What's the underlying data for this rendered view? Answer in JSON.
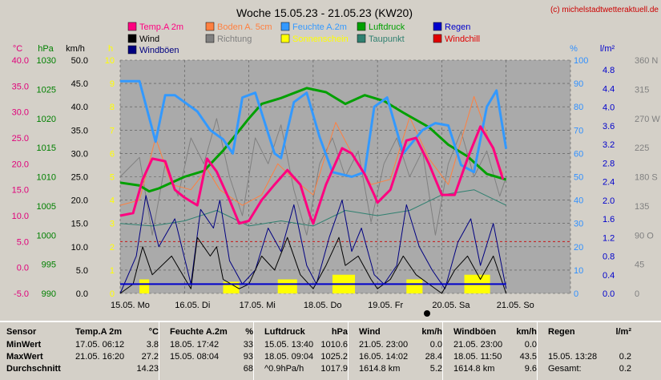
{
  "chart_data": {
    "type": "line",
    "title": "Woche 15.05.23 - 21.05.23 (KW20)",
    "watermark": "(c) michelstadtwetteraktuell.de",
    "x_ticks": [
      "15.05. Mo",
      "16.05. Di",
      "17.05. Mi",
      "18.05. Do",
      "19.05. Fr",
      "20.05. Sa",
      "21.05. So"
    ],
    "axes": {
      "temp": {
        "unit": "°C",
        "min": -5,
        "max": 40,
        "ticks": [
          "40.0",
          "35.0",
          "30.0",
          "25.0",
          "20.0",
          "15.0",
          "10.0",
          "5.0",
          "0.0",
          "-5.0"
        ],
        "color": "#e0007a"
      },
      "pressure": {
        "unit": "hPa",
        "min": 990,
        "max": 1030,
        "ticks": [
          "1030",
          "1025",
          "1020",
          "1015",
          "1010",
          "1005",
          "1000",
          "995",
          "990"
        ],
        "color": "#008000"
      },
      "wind": {
        "unit": "km/h",
        "min": 0,
        "max": 50,
        "ticks": [
          "50.0",
          "45.0",
          "40.0",
          "35.0",
          "30.0",
          "25.0",
          "20.0",
          "15.0",
          "10.0",
          "5.0",
          "0.0"
        ],
        "color": "#000000"
      },
      "sun": {
        "unit": "h",
        "min": 0,
        "max": 10,
        "ticks": [
          "10",
          "9",
          "8",
          "7",
          "6",
          "5",
          "4",
          "3",
          "2",
          "1",
          "0"
        ],
        "color": "#ffff00"
      },
      "humidity": {
        "unit": "%",
        "min": 0,
        "max": 100,
        "ticks": [
          "100",
          "90",
          "80",
          "70",
          "60",
          "50",
          "40",
          "30",
          "20",
          "10",
          "0"
        ],
        "color": "#3090ff"
      },
      "rain": {
        "unit": "l/m²",
        "min": 0,
        "max": 5.0,
        "ticks": [
          "4.8",
          "4.4",
          "4.0",
          "3.6",
          "3.2",
          "2.8",
          "2.4",
          "2.0",
          "1.6",
          "1.2",
          "0.8",
          "0.4",
          "0.0"
        ],
        "color": "#0000cc"
      },
      "direction": {
        "unit": "",
        "min": 0,
        "max": 360,
        "ticks": [
          "360 N",
          "315",
          "270 W",
          "225",
          "180 S",
          "135",
          "90 O",
          "45",
          "0"
        ],
        "color": "#808080"
      }
    },
    "legend": [
      {
        "name": "Temp.A 2m",
        "color": "#ff0080"
      },
      {
        "name": "Boden A. 5cm",
        "color": "#ff8040"
      },
      {
        "name": "Feuchte A.2m",
        "color": "#3399ff"
      },
      {
        "name": "Luftdruck",
        "color": "#00a000"
      },
      {
        "name": "Regen",
        "color": "#0000cc"
      },
      {
        "name": "Wind",
        "color": "#000000"
      },
      {
        "name": "Richtung",
        "color": "#808080"
      },
      {
        "name": "Sonnenschein",
        "color": "#ffff00"
      },
      {
        "name": "Taupunkt",
        "color": "#308070"
      },
      {
        "name": "Windchill",
        "color": "#e00000"
      },
      {
        "name": "Windböen",
        "color": "#000080"
      }
    ],
    "series": [
      {
        "name": "Temp.A 2m",
        "unit": "°C",
        "values": [
          [
            0,
            10
          ],
          [
            0.2,
            10.5
          ],
          [
            0.35,
            17
          ],
          [
            0.5,
            21
          ],
          [
            0.7,
            20.5
          ],
          [
            0.85,
            15
          ],
          [
            1.0,
            13.5
          ],
          [
            1.2,
            12
          ],
          [
            1.35,
            21
          ],
          [
            1.5,
            18.5
          ],
          [
            1.7,
            13
          ],
          [
            1.85,
            8.5
          ],
          [
            2.0,
            9
          ],
          [
            2.2,
            13
          ],
          [
            2.4,
            16
          ],
          [
            2.6,
            18.8
          ],
          [
            2.8,
            16
          ],
          [
            2.95,
            10
          ],
          [
            3.0,
            8.5
          ],
          [
            3.2,
            16
          ],
          [
            3.45,
            23
          ],
          [
            3.6,
            22
          ],
          [
            3.8,
            18
          ],
          [
            3.95,
            14
          ],
          [
            4.0,
            12.5
          ],
          [
            4.2,
            15
          ],
          [
            4.45,
            24.5
          ],
          [
            4.6,
            25
          ],
          [
            4.8,
            20
          ],
          [
            5.0,
            14
          ],
          [
            5.2,
            14
          ],
          [
            5.4,
            21
          ],
          [
            5.6,
            27.2
          ],
          [
            5.8,
            23
          ],
          [
            5.95,
            17
          ]
        ]
      },
      {
        "name": "Boden A. 5cm",
        "unit": "°C",
        "values": [
          [
            0,
            12
          ],
          [
            0.3,
            13
          ],
          [
            0.55,
            25
          ],
          [
            0.8,
            16
          ],
          [
            1.1,
            15
          ],
          [
            1.35,
            19
          ],
          [
            1.55,
            15
          ],
          [
            1.9,
            12
          ],
          [
            2.2,
            14
          ],
          [
            2.45,
            20
          ],
          [
            2.7,
            17
          ],
          [
            3.0,
            14
          ],
          [
            3.35,
            28
          ],
          [
            3.6,
            22
          ],
          [
            3.9,
            16
          ],
          [
            4.2,
            17
          ],
          [
            4.5,
            29
          ],
          [
            4.8,
            21
          ],
          [
            5.1,
            16
          ],
          [
            5.5,
            33
          ],
          [
            5.75,
            24
          ],
          [
            5.95,
            18
          ]
        ]
      },
      {
        "name": "Feuchte A.2m",
        "unit": "%",
        "values": [
          [
            0,
            91
          ],
          [
            0.3,
            91
          ],
          [
            0.55,
            65
          ],
          [
            0.7,
            85
          ],
          [
            0.85,
            85
          ],
          [
            1.2,
            78
          ],
          [
            1.4,
            70
          ],
          [
            1.6,
            66
          ],
          [
            1.75,
            60
          ],
          [
            1.9,
            84
          ],
          [
            2.1,
            86
          ],
          [
            2.4,
            60
          ],
          [
            2.5,
            58
          ],
          [
            2.7,
            82
          ],
          [
            2.9,
            86
          ],
          [
            3.1,
            67
          ],
          [
            3.3,
            52
          ],
          [
            3.6,
            50
          ],
          [
            3.8,
            52
          ],
          [
            3.95,
            80
          ],
          [
            4.15,
            84
          ],
          [
            4.4,
            60
          ],
          [
            4.55,
            65
          ],
          [
            4.7,
            70
          ],
          [
            4.9,
            73
          ],
          [
            5.1,
            72
          ],
          [
            5.3,
            55
          ],
          [
            5.5,
            52
          ],
          [
            5.7,
            80
          ],
          [
            5.85,
            87
          ],
          [
            6.0,
            62
          ]
        ]
      },
      {
        "name": "Luftdruck",
        "unit": "hPa",
        "values": [
          [
            0,
            1009
          ],
          [
            0.3,
            1008.5
          ],
          [
            0.45,
            1007.5
          ],
          [
            0.6,
            1008
          ],
          [
            1.0,
            1010
          ],
          [
            1.3,
            1011
          ],
          [
            1.6,
            1014.5
          ],
          [
            2.0,
            1020
          ],
          [
            2.2,
            1022.5
          ],
          [
            2.5,
            1023.5
          ],
          [
            2.9,
            1025.2
          ],
          [
            3.2,
            1024.5
          ],
          [
            3.5,
            1022.5
          ],
          [
            3.8,
            1024
          ],
          [
            4.1,
            1023
          ],
          [
            4.4,
            1021
          ],
          [
            4.8,
            1018.5
          ],
          [
            5.1,
            1015.5
          ],
          [
            5.4,
            1013.5
          ],
          [
            5.7,
            1010.5
          ],
          [
            6.0,
            1009.5
          ]
        ]
      },
      {
        "name": "Taupunkt",
        "unit": "°C",
        "values": [
          [
            0,
            8.5
          ],
          [
            0.5,
            8
          ],
          [
            1.0,
            9
          ],
          [
            1.5,
            11
          ],
          [
            2.0,
            8
          ],
          [
            2.5,
            9
          ],
          [
            3.0,
            8
          ],
          [
            3.5,
            11
          ],
          [
            4.0,
            10
          ],
          [
            4.5,
            11
          ],
          [
            5.0,
            14
          ],
          [
            5.5,
            15
          ],
          [
            6.0,
            12
          ]
        ]
      },
      {
        "name": "Wind",
        "unit": "km/h",
        "values": [
          [
            0,
            0
          ],
          [
            0.2,
            2
          ],
          [
            0.35,
            10
          ],
          [
            0.5,
            4
          ],
          [
            0.8,
            8
          ],
          [
            1.1,
            1
          ],
          [
            1.2,
            12
          ],
          [
            1.4,
            8
          ],
          [
            1.5,
            10
          ],
          [
            1.6,
            3
          ],
          [
            1.85,
            1
          ],
          [
            2.0,
            2
          ],
          [
            2.2,
            8
          ],
          [
            2.4,
            5
          ],
          [
            2.6,
            12
          ],
          [
            2.8,
            4
          ],
          [
            3.0,
            1
          ],
          [
            3.2,
            6
          ],
          [
            3.4,
            12
          ],
          [
            3.5,
            6
          ],
          [
            3.7,
            8
          ],
          [
            3.9,
            3
          ],
          [
            4.0,
            1
          ],
          [
            4.2,
            3
          ],
          [
            4.4,
            8
          ],
          [
            4.6,
            4
          ],
          [
            4.8,
            2
          ],
          [
            5.0,
            0
          ],
          [
            5.2,
            5
          ],
          [
            5.4,
            8
          ],
          [
            5.6,
            3
          ],
          [
            5.8,
            8
          ],
          [
            6.0,
            0
          ]
        ]
      },
      {
        "name": "Windböen",
        "unit": "km/h",
        "values": [
          [
            0,
            0
          ],
          [
            0.25,
            8
          ],
          [
            0.4,
            21
          ],
          [
            0.6,
            10
          ],
          [
            0.85,
            16
          ],
          [
            1.1,
            2
          ],
          [
            1.25,
            18
          ],
          [
            1.45,
            14
          ],
          [
            1.55,
            20
          ],
          [
            1.7,
            7
          ],
          [
            1.9,
            2
          ],
          [
            2.1,
            5
          ],
          [
            2.3,
            14
          ],
          [
            2.5,
            9
          ],
          [
            2.7,
            19
          ],
          [
            2.9,
            6
          ],
          [
            3.05,
            2
          ],
          [
            3.25,
            12
          ],
          [
            3.45,
            20
          ],
          [
            3.6,
            9
          ],
          [
            3.75,
            14
          ],
          [
            3.95,
            4
          ],
          [
            4.1,
            2
          ],
          [
            4.3,
            6
          ],
          [
            4.45,
            19
          ],
          [
            4.65,
            10
          ],
          [
            4.85,
            5
          ],
          [
            5.05,
            1
          ],
          [
            5.25,
            11
          ],
          [
            5.45,
            16
          ],
          [
            5.6,
            6
          ],
          [
            5.8,
            15
          ],
          [
            6.0,
            1
          ]
        ]
      },
      {
        "name": "Richtung",
        "unit": "°",
        "values": [
          [
            0,
            180
          ],
          [
            0.3,
            210
          ],
          [
            0.5,
            90
          ],
          [
            0.7,
            200
          ],
          [
            0.9,
            150
          ],
          [
            1.1,
            240
          ],
          [
            1.3,
            200
          ],
          [
            1.5,
            270
          ],
          [
            1.7,
            180
          ],
          [
            1.9,
            120
          ],
          [
            2.1,
            240
          ],
          [
            2.3,
            200
          ],
          [
            2.5,
            260
          ],
          [
            2.7,
            160
          ],
          [
            2.9,
            90
          ],
          [
            3.1,
            200
          ],
          [
            3.3,
            240
          ],
          [
            3.5,
            180
          ],
          [
            3.7,
            220
          ],
          [
            3.9,
            110
          ],
          [
            4.1,
            200
          ],
          [
            4.3,
            240
          ],
          [
            4.5,
            180
          ],
          [
            4.7,
            220
          ],
          [
            4.9,
            90
          ],
          [
            5.1,
            200
          ],
          [
            5.3,
            250
          ],
          [
            5.5,
            180
          ],
          [
            5.7,
            220
          ],
          [
            5.9,
            150
          ],
          [
            6.0,
            180
          ]
        ]
      },
      {
        "name": "Regen",
        "unit": "l/m²",
        "values": [
          [
            0,
            0.2
          ],
          [
            6.0,
            0.2
          ]
        ]
      },
      {
        "name": "Sonnenschein",
        "unit": "h",
        "values": [
          [
            0.3,
            0.6
          ],
          [
            0.45,
            0.6
          ],
          [
            1.6,
            0.5
          ],
          [
            1.85,
            0.5
          ],
          [
            2.45,
            0.6
          ],
          [
            2.75,
            0.6
          ],
          [
            3.3,
            0.8
          ],
          [
            3.65,
            0.8
          ],
          [
            4.45,
            0.6
          ],
          [
            4.7,
            0.6
          ],
          [
            5.35,
            0.8
          ],
          [
            5.75,
            0.8
          ],
          [
            6.0,
            0.4
          ]
        ]
      }
    ]
  },
  "stats_table": {
    "headers": [
      {
        "label": "Sensor",
        "unit": ""
      },
      {
        "label": "Temp.A 2m",
        "unit": "°C"
      },
      {
        "label": "Feuchte A.2m",
        "unit": "%"
      },
      {
        "label": "Luftdruck",
        "unit": "hPa"
      },
      {
        "label": "Wind",
        "unit": "km/h"
      },
      {
        "label": "Windböen",
        "unit": "km/h"
      },
      {
        "label": "Regen",
        "unit": "l/m²"
      }
    ],
    "rows": [
      {
        "label": "MinWert",
        "cells": [
          [
            "17.05.  06:12",
            "3.8"
          ],
          [
            "18.05.  17:42",
            "33"
          ],
          [
            "15.05.  13:40",
            "1010.6"
          ],
          [
            "21.05.  23:00",
            "0.0"
          ],
          [
            "21.05.  23:00",
            "0.0"
          ],
          [
            "",
            ""
          ]
        ]
      },
      {
        "label": "MaxWert",
        "cells": [
          [
            "21.05.  16:20",
            "27.2"
          ],
          [
            "15.05.  08:04",
            "93"
          ],
          [
            "18.05.  09:04",
            "1025.2"
          ],
          [
            "16.05.  14:02",
            "28.4"
          ],
          [
            "18.05.  11:50",
            "43.5"
          ],
          [
            "15.05.  13:28",
            "0.2"
          ]
        ]
      },
      {
        "label": "Durchschnitt",
        "cells": [
          [
            "",
            "14.23"
          ],
          [
            "",
            "68"
          ],
          [
            "^0.9hPa/h",
            "1017.9"
          ],
          [
            "1614.8 km",
            "5.2"
          ],
          [
            "1614.8 km",
            "9.6"
          ],
          [
            "Gesamt:",
            "0.2"
          ]
        ]
      }
    ]
  }
}
